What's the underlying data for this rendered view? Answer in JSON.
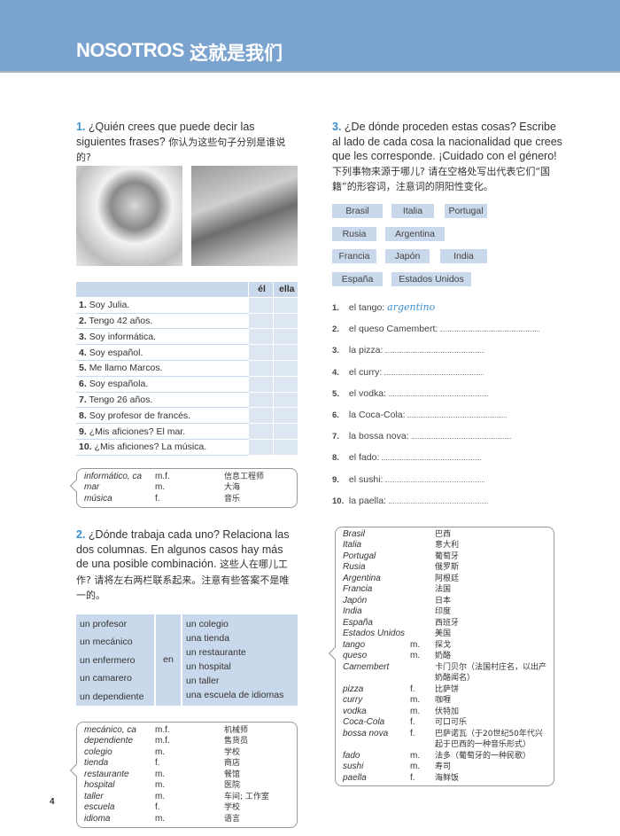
{
  "header": {
    "title": "NOSOTROS",
    "title_cn": "这就是我们",
    "color": "#7ba3cf"
  },
  "ex1": {
    "number": "1.",
    "text": "¿Quién crees que puede decir las siguientes frases?",
    "text_cn": "你认为这些句子分别是谁说的?",
    "col_el": "él",
    "col_ella": "ella",
    "rows": [
      {
        "n": "1.",
        "t": "Soy Julia."
      },
      {
        "n": "2.",
        "t": "Tengo 42 años."
      },
      {
        "n": "3.",
        "t": "Soy informática."
      },
      {
        "n": "4.",
        "t": "Soy español."
      },
      {
        "n": "5.",
        "t": "Me llamo Marcos."
      },
      {
        "n": "6.",
        "t": "Soy española."
      },
      {
        "n": "7.",
        "t": "Tengo 26 años."
      },
      {
        "n": "8.",
        "t": "Soy profesor de francés."
      },
      {
        "n": "9.",
        "t": "¿Mis aficiones? El mar."
      },
      {
        "n": "10.",
        "t": "¿Mis aficiones? La música."
      }
    ],
    "vocab": [
      [
        "informático, ca",
        "m.f.",
        "信息工程师"
      ],
      [
        "mar",
        "m.",
        "大海"
      ],
      [
        "música",
        "f.",
        "音乐"
      ]
    ]
  },
  "ex2": {
    "number": "2.",
    "text": "¿Dónde trabaja cada uno? Relaciona las dos columnas. En algunos casos hay más de una posible combinación.",
    "text_cn": "这些人在哪儿工作? 请将左右两栏联系起来。注意有些答案不是唯一的。",
    "left": [
      "un profesor",
      "un mecánico",
      "un enfermero",
      "un camarero",
      "un dependiente"
    ],
    "middle": "en",
    "right": [
      "un colegio",
      "una tienda",
      "un restaurante",
      "un hospital",
      "un taller",
      "una escuela de idiomas"
    ],
    "vocab": [
      [
        "mecánico, ca",
        "m.f.",
        "机械师"
      ],
      [
        "dependiente",
        "m.f.",
        "售货员"
      ],
      [
        "colegio",
        "m.",
        "学校"
      ],
      [
        "tienda",
        "f.",
        "商店"
      ],
      [
        "restaurante",
        "m.",
        "餐馆"
      ],
      [
        "hospital",
        "m.",
        "医院"
      ],
      [
        "taller",
        "m.",
        "车间; 工作室"
      ],
      [
        "escuela",
        "f.",
        "学校"
      ],
      [
        "idioma",
        "m.",
        "语言"
      ]
    ]
  },
  "ex3": {
    "number": "3.",
    "text": "¿De dónde proceden estas cosas? Escribe al lado de cada cosa la nacionalidad que crees que les corresponde. ¡Cuidado con el género!",
    "text_cn": "下列事物来源于哪儿? 请在空格处写出代表它们“国籍”的形容词，注意词的阴阳性变化。",
    "countries": [
      "Brasil",
      "Italia",
      "Portugal",
      "Rusia",
      "Argentina",
      "Francia",
      "Japón",
      "India",
      "España",
      "Estados Unidos"
    ],
    "items": [
      {
        "n": "1.",
        "t": "el tango:",
        "answer": "argentino"
      },
      {
        "n": "2.",
        "t": "el queso Camembert:"
      },
      {
        "n": "3.",
        "t": "la pizza:"
      },
      {
        "n": "4.",
        "t": "el curry:"
      },
      {
        "n": "5.",
        "t": "el vodka:"
      },
      {
        "n": "6.",
        "t": "la Coca-Cola:"
      },
      {
        "n": "7.",
        "t": "la bossa nova:"
      },
      {
        "n": "8.",
        "t": "el fado:"
      },
      {
        "n": "9.",
        "t": "el sushi:"
      },
      {
        "n": "10.",
        "t": "la paella:"
      }
    ],
    "vocab": [
      [
        "Brasil",
        "",
        "巴西"
      ],
      [
        "Italia",
        "",
        "意大利"
      ],
      [
        "Portugal",
        "",
        "葡萄牙"
      ],
      [
        "Rusia",
        "",
        "俄罗斯"
      ],
      [
        "Argentina",
        "",
        "阿根廷"
      ],
      [
        "Francia",
        "",
        "法国"
      ],
      [
        "Japón",
        "",
        "日本"
      ],
      [
        "India",
        "",
        "印度"
      ],
      [
        "España",
        "",
        "西班牙"
      ],
      [
        "Estados Unidos",
        "",
        "美国"
      ],
      [
        "tango",
        "m.",
        "探戈"
      ],
      [
        "queso",
        "m.",
        "奶酪"
      ],
      [
        "Camembert",
        "",
        "卡门贝尔（法国村庄名，以出产"
      ],
      [
        "",
        "",
        "奶酪闻名）"
      ],
      [
        "pizza",
        "f.",
        "比萨饼"
      ],
      [
        "curry",
        "m.",
        "咖喱"
      ],
      [
        "vodka",
        "m.",
        "伏特加"
      ],
      [
        "Coca-Cola",
        "f.",
        "可口可乐"
      ],
      [
        "bossa nova",
        "f.",
        "巴萨诺瓦（于20世纪50年代兴"
      ],
      [
        "",
        "",
        "起于巴西的一种音乐形式）"
      ],
      [
        "fado",
        "m.",
        "法多（葡萄牙的一种民歌）"
      ],
      [
        "sushi",
        "m.",
        "寿司"
      ],
      [
        "paella",
        "f.",
        "海鲜饭"
      ]
    ]
  },
  "page_number": "4"
}
